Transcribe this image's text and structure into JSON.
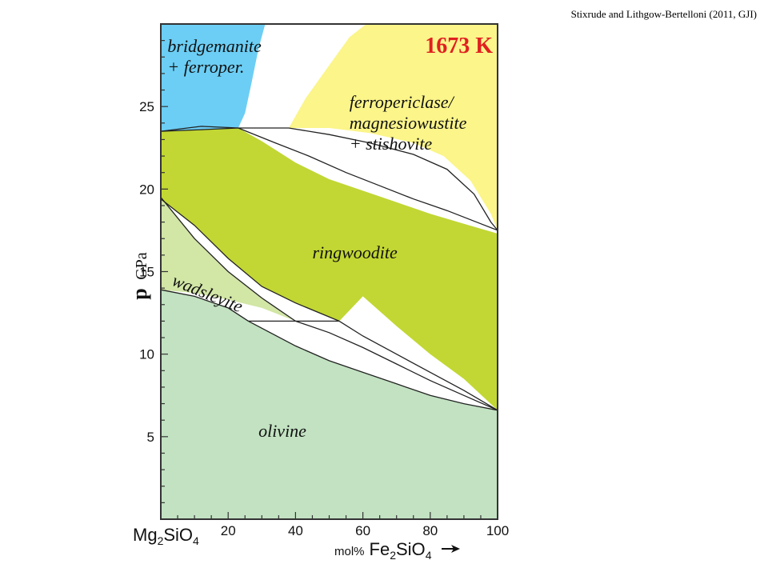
{
  "citation": "Stixrude and Lithgow-Bertelloni (2011, GJI)",
  "chart_data": {
    "type": "phase-diagram",
    "temperature_label": "1673 K",
    "xlabel": {
      "left_endmember": {
        "base": "Mg",
        "sub1": "2",
        "mid": "SiO",
        "sub2": "4"
      },
      "unit": "mol%",
      "right_endmember": {
        "base": "Fe",
        "sub1": "2",
        "mid": "SiO",
        "sub2": "4"
      }
    },
    "ylabel": {
      "symbol": "p",
      "unit": "GPa"
    },
    "xlim": [
      0,
      100
    ],
    "ylim": [
      0,
      30
    ],
    "xticks": [
      20,
      40,
      60,
      80,
      100
    ],
    "yticks": [
      5,
      10,
      15,
      20,
      25
    ],
    "colors": {
      "bridgemanite": "#6ccef5",
      "ferropericlase": "#fbf58a",
      "ringwoodite": "#c2d733",
      "wadsleyite": "#d2e6a6",
      "olivine": "#c2e2c2",
      "two_phase": "#ffffff"
    },
    "regions": [
      {
        "id": "bridgemanite",
        "label_lines": [
          "bridgemanite",
          "+ ferroper."
        ],
        "label_anchor": [
          2,
          28.3
        ],
        "boundary": [
          [
            0,
            30
          ],
          [
            31,
            30
          ],
          [
            29,
            28.5
          ],
          [
            27,
            26.5
          ],
          [
            25,
            24.6
          ],
          [
            23,
            23.7
          ],
          [
            0,
            23.5
          ]
        ]
      },
      {
        "id": "ferropericlase",
        "label_lines": [
          "ferropericlase/",
          "magnesiowustite",
          "+ stishovite"
        ],
        "label_anchor": [
          56,
          24.9
        ],
        "boundary": [
          [
            61,
            30
          ],
          [
            100,
            30
          ],
          [
            100,
            17.5
          ],
          [
            98,
            18.5
          ],
          [
            92,
            20.5
          ],
          [
            84,
            22.0
          ],
          [
            75,
            22.8
          ],
          [
            62,
            23.4
          ],
          [
            50,
            23.7
          ],
          [
            38,
            23.7
          ],
          [
            43,
            25.5
          ],
          [
            50,
            27.5
          ],
          [
            56,
            29.2
          ]
        ]
      },
      {
        "id": "ringwoodite",
        "label_lines": [
          "ringwoodite"
        ],
        "label_anchor": [
          45,
          15.8
        ],
        "boundary": [
          [
            0,
            23.5
          ],
          [
            11,
            23.6
          ],
          [
            23,
            23.7
          ],
          [
            30,
            22.9
          ],
          [
            40,
            21.6
          ],
          [
            50,
            20.6
          ],
          [
            60,
            19.9
          ],
          [
            70,
            19.2
          ],
          [
            80,
            18.5
          ],
          [
            90,
            17.9
          ],
          [
            100,
            17.3
          ],
          [
            100,
            6.6
          ],
          [
            90,
            8.5
          ],
          [
            80,
            10.0
          ],
          [
            70,
            11.7
          ],
          [
            60,
            13.5
          ],
          [
            53,
            12.0
          ],
          [
            40,
            13.1
          ],
          [
            30,
            14.1
          ],
          [
            20,
            15.8
          ],
          [
            10,
            17.8
          ],
          [
            0,
            19.4
          ]
        ]
      },
      {
        "id": "wadsleyite",
        "label_lines": [
          "wadsleyite"
        ],
        "label_anchor": [
          3,
          14.2
        ],
        "label_rotate": 22,
        "boundary": [
          [
            0,
            19.5
          ],
          [
            10,
            17.0
          ],
          [
            20,
            15.0
          ],
          [
            30,
            13.4
          ],
          [
            40,
            12.0
          ],
          [
            30,
            12.8
          ],
          [
            20,
            13.3
          ],
          [
            10,
            13.7
          ],
          [
            0,
            13.9
          ]
        ]
      },
      {
        "id": "olivine",
        "label_lines": [
          "olivine"
        ],
        "label_anchor": [
          29,
          5.0
        ],
        "boundary": [
          [
            0,
            13.9
          ],
          [
            10,
            13.5
          ],
          [
            20,
            12.8
          ],
          [
            26,
            12.0
          ],
          [
            40,
            10.5
          ],
          [
            50,
            9.6
          ],
          [
            60,
            8.9
          ],
          [
            70,
            8.2
          ],
          [
            80,
            7.5
          ],
          [
            90,
            7.0
          ],
          [
            100,
            6.6
          ],
          [
            100,
            0
          ],
          [
            0,
            0
          ]
        ]
      }
    ],
    "boundary_lines": [
      [
        [
          0,
          23.5
        ],
        [
          12,
          23.8
        ],
        [
          23,
          23.7
        ]
      ],
      [
        [
          0,
          23.5
        ],
        [
          12,
          23.6
        ],
        [
          23,
          23.7
        ]
      ],
      [
        [
          23,
          23.7
        ],
        [
          38,
          23.7
        ]
      ],
      [
        [
          26,
          12.0
        ],
        [
          53,
          12.0
        ]
      ],
      [
        [
          23,
          23.7
        ],
        [
          34,
          22.8
        ],
        [
          44,
          22.0
        ],
        [
          55,
          21.0
        ],
        [
          65,
          20.2
        ],
        [
          75,
          19.4
        ],
        [
          85,
          18.7
        ],
        [
          95,
          17.9
        ],
        [
          100,
          17.5
        ]
      ],
      [
        [
          38,
          23.7
        ],
        [
          50,
          23.3
        ],
        [
          62,
          22.8
        ],
        [
          75,
          22.1
        ],
        [
          85,
          21.2
        ],
        [
          93,
          19.7
        ],
        [
          98,
          18.0
        ],
        [
          100,
          17.5
        ]
      ],
      [
        [
          0,
          19.4
        ],
        [
          10,
          17.8
        ],
        [
          20,
          15.8
        ],
        [
          30,
          14.1
        ],
        [
          40,
          13.1
        ],
        [
          53,
          12.0
        ]
      ],
      [
        [
          0,
          19.5
        ],
        [
          10,
          17.0
        ],
        [
          20,
          15.0
        ],
        [
          30,
          13.4
        ],
        [
          40,
          12.0
        ]
      ],
      [
        [
          0,
          13.9
        ],
        [
          10,
          13.5
        ],
        [
          20,
          12.8
        ],
        [
          26,
          12.0
        ]
      ],
      [
        [
          26,
          12.0
        ],
        [
          40,
          10.5
        ],
        [
          50,
          9.6
        ],
        [
          60,
          8.9
        ],
        [
          70,
          8.2
        ],
        [
          80,
          7.5
        ],
        [
          90,
          7.0
        ],
        [
          100,
          6.6
        ]
      ],
      [
        [
          53,
          12.0
        ],
        [
          60,
          11.1
        ],
        [
          70,
          10.0
        ],
        [
          80,
          8.9
        ],
        [
          90,
          7.8
        ],
        [
          100,
          6.6
        ]
      ],
      [
        [
          40,
          12.0
        ],
        [
          50,
          11.3
        ],
        [
          60,
          10.4
        ],
        [
          70,
          9.4
        ],
        [
          80,
          8.4
        ],
        [
          90,
          7.5
        ],
        [
          100,
          6.6
        ]
      ]
    ]
  }
}
